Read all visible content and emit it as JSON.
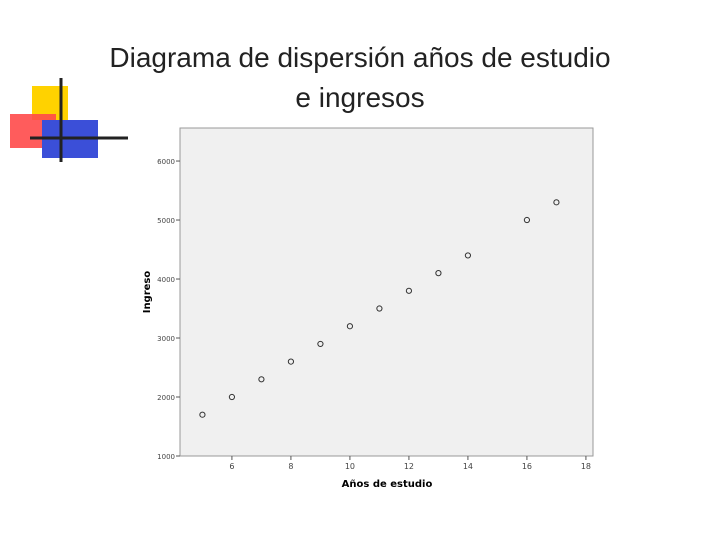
{
  "chart_data": {
    "type": "scatter",
    "title": "Diagrama de dispersión años de estudio\ne ingresos",
    "x_label": "Años de estudio",
    "y_label": "Ingreso",
    "x": [
      5,
      6,
      7,
      8,
      9,
      10,
      11,
      12,
      13,
      14,
      16,
      17
    ],
    "values": [
      1700,
      2000,
      2300,
      2600,
      2900,
      3200,
      3500,
      3800,
      4100,
      4400,
      5000,
      5300
    ],
    "xlim": [
      4.24,
      18.24
    ],
    "ylim": [
      1000,
      6560
    ],
    "xticks": [
      6,
      8,
      10,
      12,
      14,
      16,
      18
    ],
    "yticks": [
      1000,
      2000,
      3000,
      4000,
      5000,
      6000
    ],
    "color": "#333333"
  }
}
